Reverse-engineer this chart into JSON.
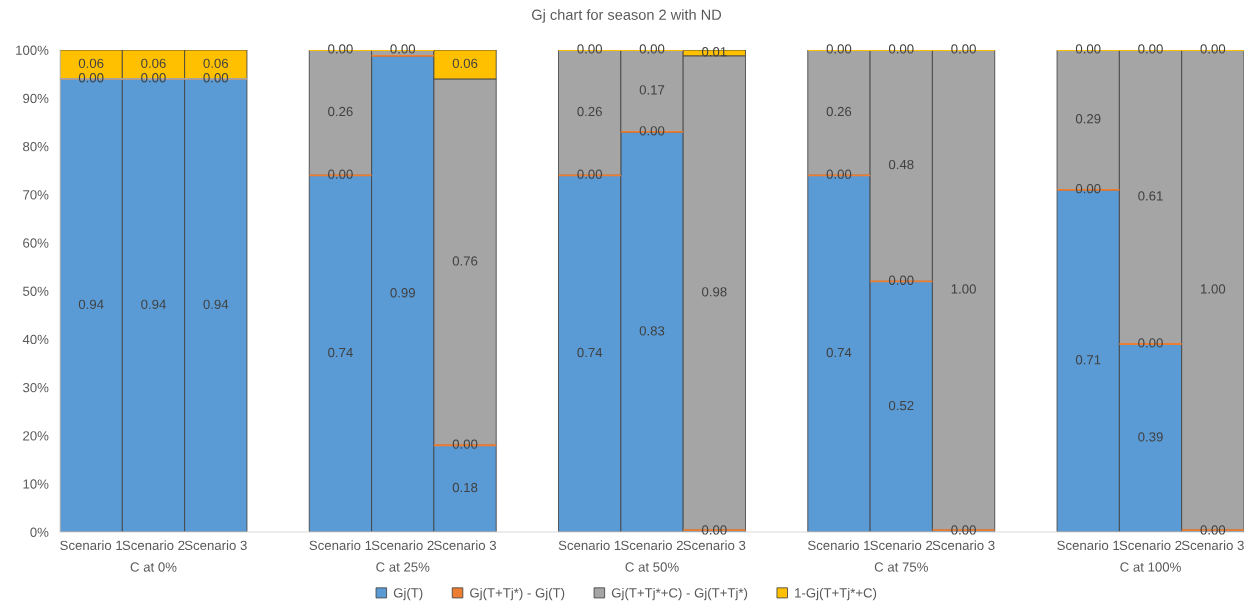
{
  "chart_data": {
    "type": "bar",
    "stacked": true,
    "title": "Gj chart for season 2 with ND",
    "categories": [
      "Scenario 1",
      "Scenario 2",
      "Scenario 3",
      null,
      "Scenario 1",
      "Scenario 2",
      "Scenario 3",
      null,
      "Scenario 1",
      "Scenario 2",
      "Scenario 3",
      null,
      "Scenario 1",
      "Scenario 2",
      "Scenario 3",
      null,
      "Scenario 1",
      "Scenario 2",
      "Scenario 3"
    ],
    "annotations": [
      "C at 0%",
      "C at 25%",
      "C at 50%",
      "C at 75%",
      "C at 100%"
    ],
    "series": [
      {
        "name": "Gj(T)",
        "color": "#5b9bd5",
        "values": [
          0.94,
          0.94,
          0.94,
          null,
          0.74,
          0.988,
          0.18,
          null,
          0.74,
          0.83,
          0.004,
          null,
          0.74,
          0.52,
          0.004,
          null,
          0.71,
          0.39,
          0.004
        ],
        "value_labels": [
          "0.94",
          "0.94",
          "0.94",
          null,
          "0.74",
          "0.99",
          "0.18",
          null,
          "0.74",
          "0.83",
          "0.00",
          null,
          "0.74",
          "0.52",
          "0.00",
          null,
          "0.71",
          "0.39",
          "0.00"
        ]
      },
      {
        "name": "Gj(T+Tj*) - Gj(T)",
        "color": "#ed7d31",
        "values": [
          0,
          0,
          0,
          null,
          0,
          0,
          0,
          null,
          0,
          0,
          0,
          null,
          0,
          0,
          0,
          null,
          0,
          0,
          0
        ],
        "value_labels": [
          "0.00",
          "0.00",
          "0.00",
          null,
          "0.00",
          null,
          "0.00",
          null,
          "0.00",
          "0.00",
          null,
          null,
          "0.00",
          "0.00",
          null,
          null,
          "0.00",
          "0.00",
          null
        ]
      },
      {
        "name": "Gj(T+Tj*+C) - Gj(T+Tj*)",
        "color": "#a5a5a5",
        "values": [
          0,
          0,
          0,
          null,
          0.26,
          0.012,
          0.76,
          null,
          0.26,
          0.17,
          0.984,
          null,
          0.26,
          0.48,
          0.996,
          null,
          0.29,
          0.61,
          0.996
        ],
        "value_labels": [
          null,
          null,
          null,
          null,
          "0.26",
          null,
          "0.76",
          null,
          "0.26",
          "0.17",
          "0.98",
          null,
          "0.26",
          "0.48",
          "1.00",
          null,
          "0.29",
          "0.61",
          "1.00"
        ]
      },
      {
        "name": "1-Gj(T+Tj*+C)",
        "color": "#ffc000",
        "values": [
          0.06,
          0.06,
          0.06,
          null,
          0,
          0,
          0.06,
          null,
          0,
          0,
          0.012,
          null,
          0,
          0,
          0,
          null,
          0,
          0,
          0
        ],
        "value_labels": [
          "0.06",
          "0.06",
          "0.06",
          null,
          "0.00",
          "0.00",
          "0.06",
          null,
          "0.00",
          "0.00",
          "0.01",
          null,
          "0.00",
          "0.00",
          "0.00",
          null,
          "0.00",
          "0.00",
          "0.00"
        ]
      }
    ],
    "ylim": [
      0,
      1
    ],
    "yticks": [
      {
        "value": 0,
        "label": "0%"
      },
      {
        "value": 0.1,
        "label": "10%"
      },
      {
        "value": 0.2,
        "label": "20%"
      },
      {
        "value": 0.3,
        "label": "30%"
      },
      {
        "value": 0.4,
        "label": "40%"
      },
      {
        "value": 0.5,
        "label": "50%"
      },
      {
        "value": 0.6,
        "label": "60%"
      },
      {
        "value": 0.7,
        "label": "70%"
      },
      {
        "value": 0.8,
        "label": "80%"
      },
      {
        "value": 0.9,
        "label": "90%"
      },
      {
        "value": 1,
        "label": "100%"
      }
    ],
    "legend": "bottom"
  }
}
